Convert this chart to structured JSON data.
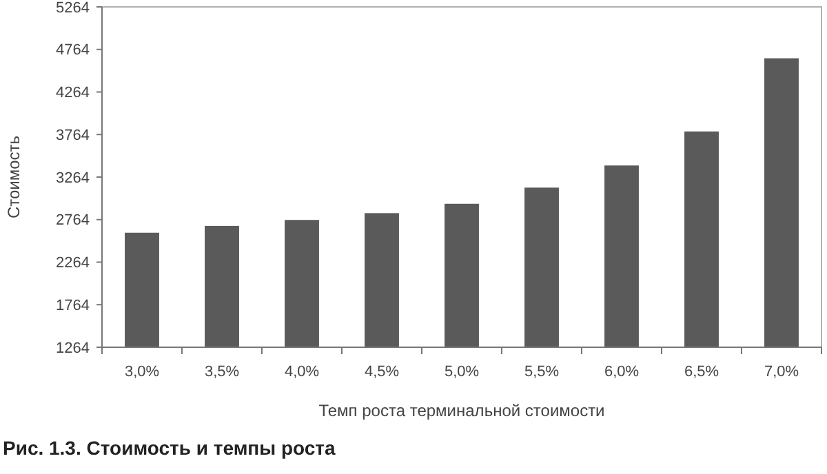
{
  "chart_data": {
    "type": "bar",
    "title": "Рис. 1.3. Стоимость и темпы роста",
    "xlabel": "Темп роста терминальной стоимости",
    "ylabel": "Стоимость",
    "categories": [
      "3,0%",
      "3,5%",
      "4,0%",
      "4,5%",
      "5,0%",
      "5,5%",
      "6,0%",
      "6,5%",
      "7,0%"
    ],
    "values": [
      2610,
      2690,
      2760,
      2840,
      2950,
      3140,
      3400,
      3800,
      4660
    ],
    "color": "#5a5a5a",
    "ylim": [
      1264,
      5264
    ],
    "yticks": [
      1264,
      1764,
      2264,
      2764,
      3264,
      3764,
      4264,
      4764,
      5264
    ],
    "grid": false
  }
}
